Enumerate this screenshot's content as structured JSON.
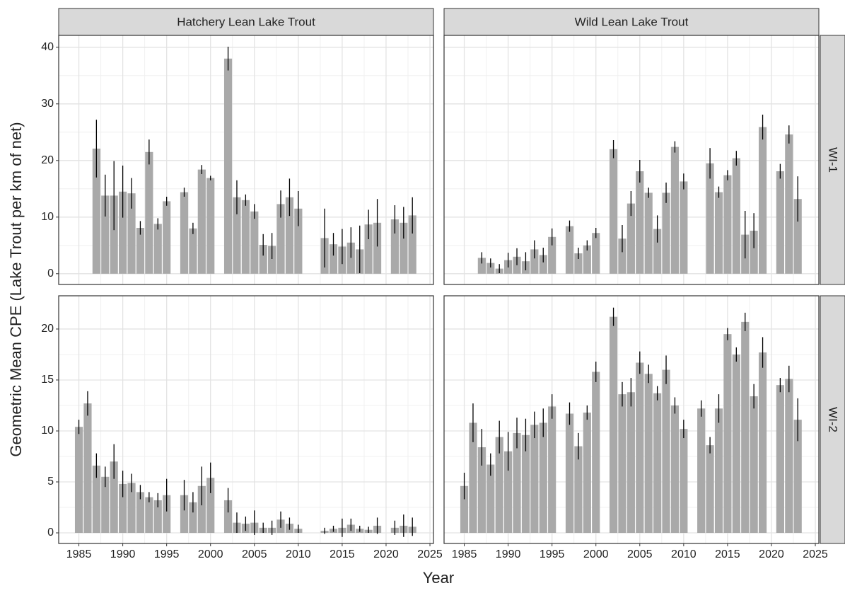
{
  "columns": [
    "Hatchery Lean Lake Trout",
    "Wild Lean Lake Trout"
  ],
  "rows": [
    "WI-1",
    "WI-2"
  ],
  "x_label": "Year",
  "y_label": "Geometric Mean CPE (Lake Trout per km of net)",
  "chart_data": [
    {
      "type": "bar",
      "color": "#a9a9a9",
      "grid": true,
      "x": [
        1985,
        1986,
        1987,
        1988,
        1989,
        1990,
        1991,
        1992,
        1993,
        1994,
        1995,
        1996,
        1997,
        1998,
        1999,
        2000,
        2001,
        2002,
        2003,
        2004,
        2005,
        2006,
        2007,
        2008,
        2009,
        2010,
        2011,
        2012,
        2013,
        2014,
        2015,
        2016,
        2017,
        2018,
        2019,
        2020,
        2021,
        2022,
        2023
      ],
      "values": [
        null,
        null,
        22.1,
        13.8,
        13.8,
        14.5,
        14.2,
        8.1,
        21.5,
        8.8,
        12.8,
        null,
        14.4,
        8.0,
        18.4,
        16.9,
        null,
        38.0,
        13.5,
        13.0,
        11.0,
        5.1,
        4.9,
        12.3,
        13.5,
        11.5,
        null,
        null,
        6.3,
        5.2,
        4.8,
        5.5,
        4.3,
        8.7,
        9.0,
        null,
        9.6,
        9.0,
        10.3
      ],
      "errors": [
        null,
        null,
        5.1,
        3.7,
        6.1,
        4.6,
        2.7,
        1.2,
        2.2,
        1.0,
        0.8,
        null,
        0.8,
        1.0,
        0.8,
        0.4,
        null,
        2.1,
        3.0,
        1.0,
        1.3,
        1.9,
        2.3,
        2.4,
        3.3,
        3.1,
        null,
        null,
        5.2,
        2.0,
        3.1,
        2.7,
        4.2,
        2.6,
        4.2,
        null,
        2.5,
        2.8,
        3.2
      ],
      "xlim": [
        1982.7,
        2025.4
      ],
      "ylim": [
        -1.9,
        42.1
      ],
      "xticks": [
        1985,
        1990,
        1995,
        2000,
        2005,
        2010,
        2015,
        2020,
        2025
      ],
      "yticks": [
        0,
        10,
        20,
        30,
        40
      ]
    },
    {
      "type": "bar",
      "color": "#a9a9a9",
      "grid": true,
      "x": [
        1985,
        1986,
        1987,
        1988,
        1989,
        1990,
        1991,
        1992,
        1993,
        1994,
        1995,
        1996,
        1997,
        1998,
        1999,
        2000,
        2001,
        2002,
        2003,
        2004,
        2005,
        2006,
        2007,
        2008,
        2009,
        2010,
        2011,
        2012,
        2013,
        2014,
        2015,
        2016,
        2017,
        2018,
        2019,
        2020,
        2021,
        2022,
        2023
      ],
      "values": [
        null,
        null,
        2.8,
        1.9,
        0.9,
        2.4,
        3.0,
        2.2,
        4.3,
        3.3,
        6.5,
        null,
        8.4,
        3.6,
        5.0,
        7.2,
        null,
        22.0,
        6.2,
        12.4,
        18.1,
        14.3,
        7.9,
        14.3,
        22.4,
        16.3,
        null,
        null,
        19.5,
        14.4,
        17.4,
        20.4,
        6.9,
        7.6,
        25.9,
        null,
        18.1,
        24.6,
        13.2
      ],
      "errors": [
        null,
        null,
        1.0,
        0.8,
        0.8,
        1.3,
        1.5,
        1.6,
        1.6,
        1.3,
        1.5,
        null,
        1.0,
        1.0,
        0.9,
        0.9,
        null,
        1.6,
        2.4,
        2.2,
        2.0,
        0.9,
        2.4,
        1.8,
        1.0,
        1.4,
        null,
        null,
        2.7,
        1.0,
        0.9,
        1.3,
        4.2,
        3.1,
        2.2,
        null,
        1.3,
        1.6,
        4.0
      ],
      "xlim": [
        1982.7,
        2025.4
      ],
      "ylim": [
        -1.9,
        42.1
      ],
      "xticks": [
        1985,
        1990,
        1995,
        2000,
        2005,
        2010,
        2015,
        2020,
        2025
      ],
      "yticks": [
        0,
        10,
        20,
        30,
        40
      ]
    },
    {
      "type": "bar",
      "color": "#a9a9a9",
      "grid": true,
      "x": [
        1985,
        1986,
        1987,
        1988,
        1989,
        1990,
        1991,
        1992,
        1993,
        1994,
        1995,
        1996,
        1997,
        1998,
        1999,
        2000,
        2001,
        2002,
        2003,
        2004,
        2005,
        2006,
        2007,
        2008,
        2009,
        2010,
        2011,
        2012,
        2013,
        2014,
        2015,
        2016,
        2017,
        2018,
        2019,
        2020,
        2021,
        2022,
        2023
      ],
      "values": [
        10.4,
        12.7,
        6.6,
        5.5,
        7.0,
        4.8,
        4.9,
        4.0,
        3.5,
        3.2,
        3.7,
        null,
        3.7,
        3.0,
        4.6,
        5.4,
        null,
        3.2,
        1.0,
        0.9,
        1.0,
        0.5,
        0.5,
        1.3,
        0.9,
        0.4,
        null,
        null,
        0.2,
        0.4,
        0.5,
        0.8,
        0.4,
        0.3,
        0.7,
        null,
        0.5,
        0.7,
        0.6
      ],
      "errors": [
        0.7,
        1.2,
        1.2,
        1.0,
        1.7,
        1.3,
        0.9,
        0.7,
        0.5,
        0.7,
        1.6,
        null,
        1.5,
        1.0,
        1.9,
        1.5,
        null,
        1.2,
        1.0,
        0.7,
        1.2,
        0.5,
        0.7,
        0.8,
        0.6,
        0.4,
        null,
        null,
        0.3,
        0.3,
        0.9,
        0.6,
        0.3,
        0.3,
        0.8,
        null,
        0.7,
        1.1,
        0.9
      ],
      "xlim": [
        1982.7,
        2025.4
      ],
      "ylim": [
        -1.04,
        23.26
      ],
      "xticks": [
        1985,
        1990,
        1995,
        2000,
        2005,
        2010,
        2015,
        2020,
        2025
      ],
      "yticks": [
        0,
        5,
        10,
        15,
        20
      ]
    },
    {
      "type": "bar",
      "color": "#a9a9a9",
      "grid": true,
      "x": [
        1985,
        1986,
        1987,
        1988,
        1989,
        1990,
        1991,
        1992,
        1993,
        1994,
        1995,
        1996,
        1997,
        1998,
        1999,
        2000,
        2001,
        2002,
        2003,
        2004,
        2005,
        2006,
        2007,
        2008,
        2009,
        2010,
        2011,
        2012,
        2013,
        2014,
        2015,
        2016,
        2017,
        2018,
        2019,
        2020,
        2021,
        2022,
        2023
      ],
      "values": [
        4.6,
        10.8,
        8.4,
        6.7,
        9.4,
        8.0,
        9.8,
        9.6,
        10.6,
        10.8,
        12.4,
        null,
        11.7,
        8.5,
        11.8,
        15.8,
        null,
        21.2,
        13.6,
        13.8,
        16.7,
        15.6,
        13.7,
        16.0,
        12.5,
        10.2,
        null,
        12.2,
        8.6,
        12.2,
        19.5,
        17.5,
        20.7,
        13.4,
        17.7,
        null,
        14.5,
        15.1,
        11.1
      ],
      "errors": [
        1.3,
        1.9,
        1.8,
        1.1,
        1.6,
        1.9,
        1.5,
        1.6,
        1.3,
        1.4,
        1.2,
        null,
        1.1,
        1.3,
        0.7,
        1.0,
        null,
        0.9,
        1.2,
        1.4,
        1.1,
        0.9,
        0.7,
        1.4,
        0.8,
        0.9,
        null,
        0.8,
        0.8,
        1.4,
        0.6,
        0.7,
        0.9,
        1.2,
        1.5,
        null,
        0.7,
        1.3,
        2.1
      ],
      "xlim": [
        1982.7,
        2025.4
      ],
      "ylim": [
        -1.04,
        23.26
      ],
      "xticks": [
        1985,
        1990,
        1995,
        2000,
        2005,
        2010,
        2015,
        2020,
        2025
      ],
      "yticks": [
        0,
        5,
        10,
        15,
        20
      ]
    }
  ]
}
